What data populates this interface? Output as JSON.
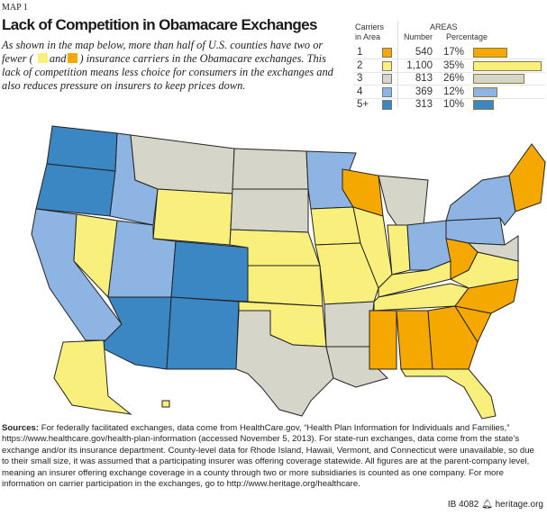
{
  "kicker": "MAP 1",
  "title": "Lack of Competition in Obamacare Exchanges",
  "intro": {
    "part1": "As shown in the map below, more than half of U.S. counties have two or fewer (",
    "and": "and",
    "part2": ") insurance carriers in the Obamacare exchanges. This lack of competition means less choice for consumers in the exchanges and also reduces pressure on insurers to keep prices down."
  },
  "colors": {
    "1": "#f5a800",
    "2": "#f8ef7c",
    "3": "#d6d5c9",
    "4": "#8db4e2",
    "5+": "#3b87c3",
    "border": "#222222"
  },
  "legend": {
    "carriers_header_1": "Carriers",
    "carriers_header_2": "in Area",
    "areas_header": "AREAS",
    "number_header": "Number",
    "percentage_header": "Percentage",
    "rows": [
      {
        "carriers": "1",
        "number": "540",
        "percentage": "17%",
        "pct": 17
      },
      {
        "carriers": "2",
        "number": "1,100",
        "percentage": "35%",
        "pct": 35
      },
      {
        "carriers": "3",
        "number": "813",
        "percentage": "26%",
        "pct": 26
      },
      {
        "carriers": "4",
        "number": "369",
        "percentage": "12%",
        "pct": 12
      },
      {
        "carriers": "5+",
        "number": "313",
        "percentage": "10%",
        "pct": 10
      }
    ]
  },
  "map": {
    "predominant_carriers_by_state": {
      "WA": "5+",
      "OR": "5+",
      "CA": "4",
      "NV": "2",
      "ID": "4",
      "MT": "3",
      "WY": "2",
      "UT": "4",
      "AZ": "5+",
      "CO": "5+",
      "NM": "5+",
      "ND": "3",
      "SD": "3",
      "NE": "2",
      "KS": "2",
      "OK": "2",
      "TX": "3",
      "MN": "4",
      "IA": "2",
      "MO": "2",
      "AR": "3",
      "LA": "3",
      "WI": "1",
      "IL": "2",
      "MI": "3",
      "IN": "2",
      "OH": "4",
      "KY": "2",
      "TN": "2",
      "MS": "1",
      "AL": "1",
      "GA": "1",
      "FL": "2",
      "SC": "1",
      "NC": "1",
      "VA": "2",
      "WV": "1",
      "PA": "4",
      "NY": "4",
      "NE_REGION": "1",
      "MID_ATL": "3",
      "AK": "2",
      "HI": "2"
    }
  },
  "sources": {
    "label": "Sources:",
    "text": " For federally facilitated exchanges, data come from HealthCare.gov, “Health Plan Information for Individuals and Families,” https://www.healthcare.gov/health-plan-information (accessed November 5, 2013). For state-run exchanges, data come from the state’s exchange and/or its insurance department. County-level data for Rhode Island, Hawaii, Vermont, and Connecticut were unavailable, so due to their small size, it was assumed that a participating insurer was offering coverage statewide. All figures are at the parent-company level, meaning an insurer offering exchange coverage in a county through two or more subsidiaries is counted as one company. For more information on carrier participation in the exchanges, go to http://www.heritage.org/healthcare."
  },
  "footer": {
    "id": "IB 4082",
    "site": "heritage.org",
    "logo_icon": "liberty-bell-icon"
  }
}
